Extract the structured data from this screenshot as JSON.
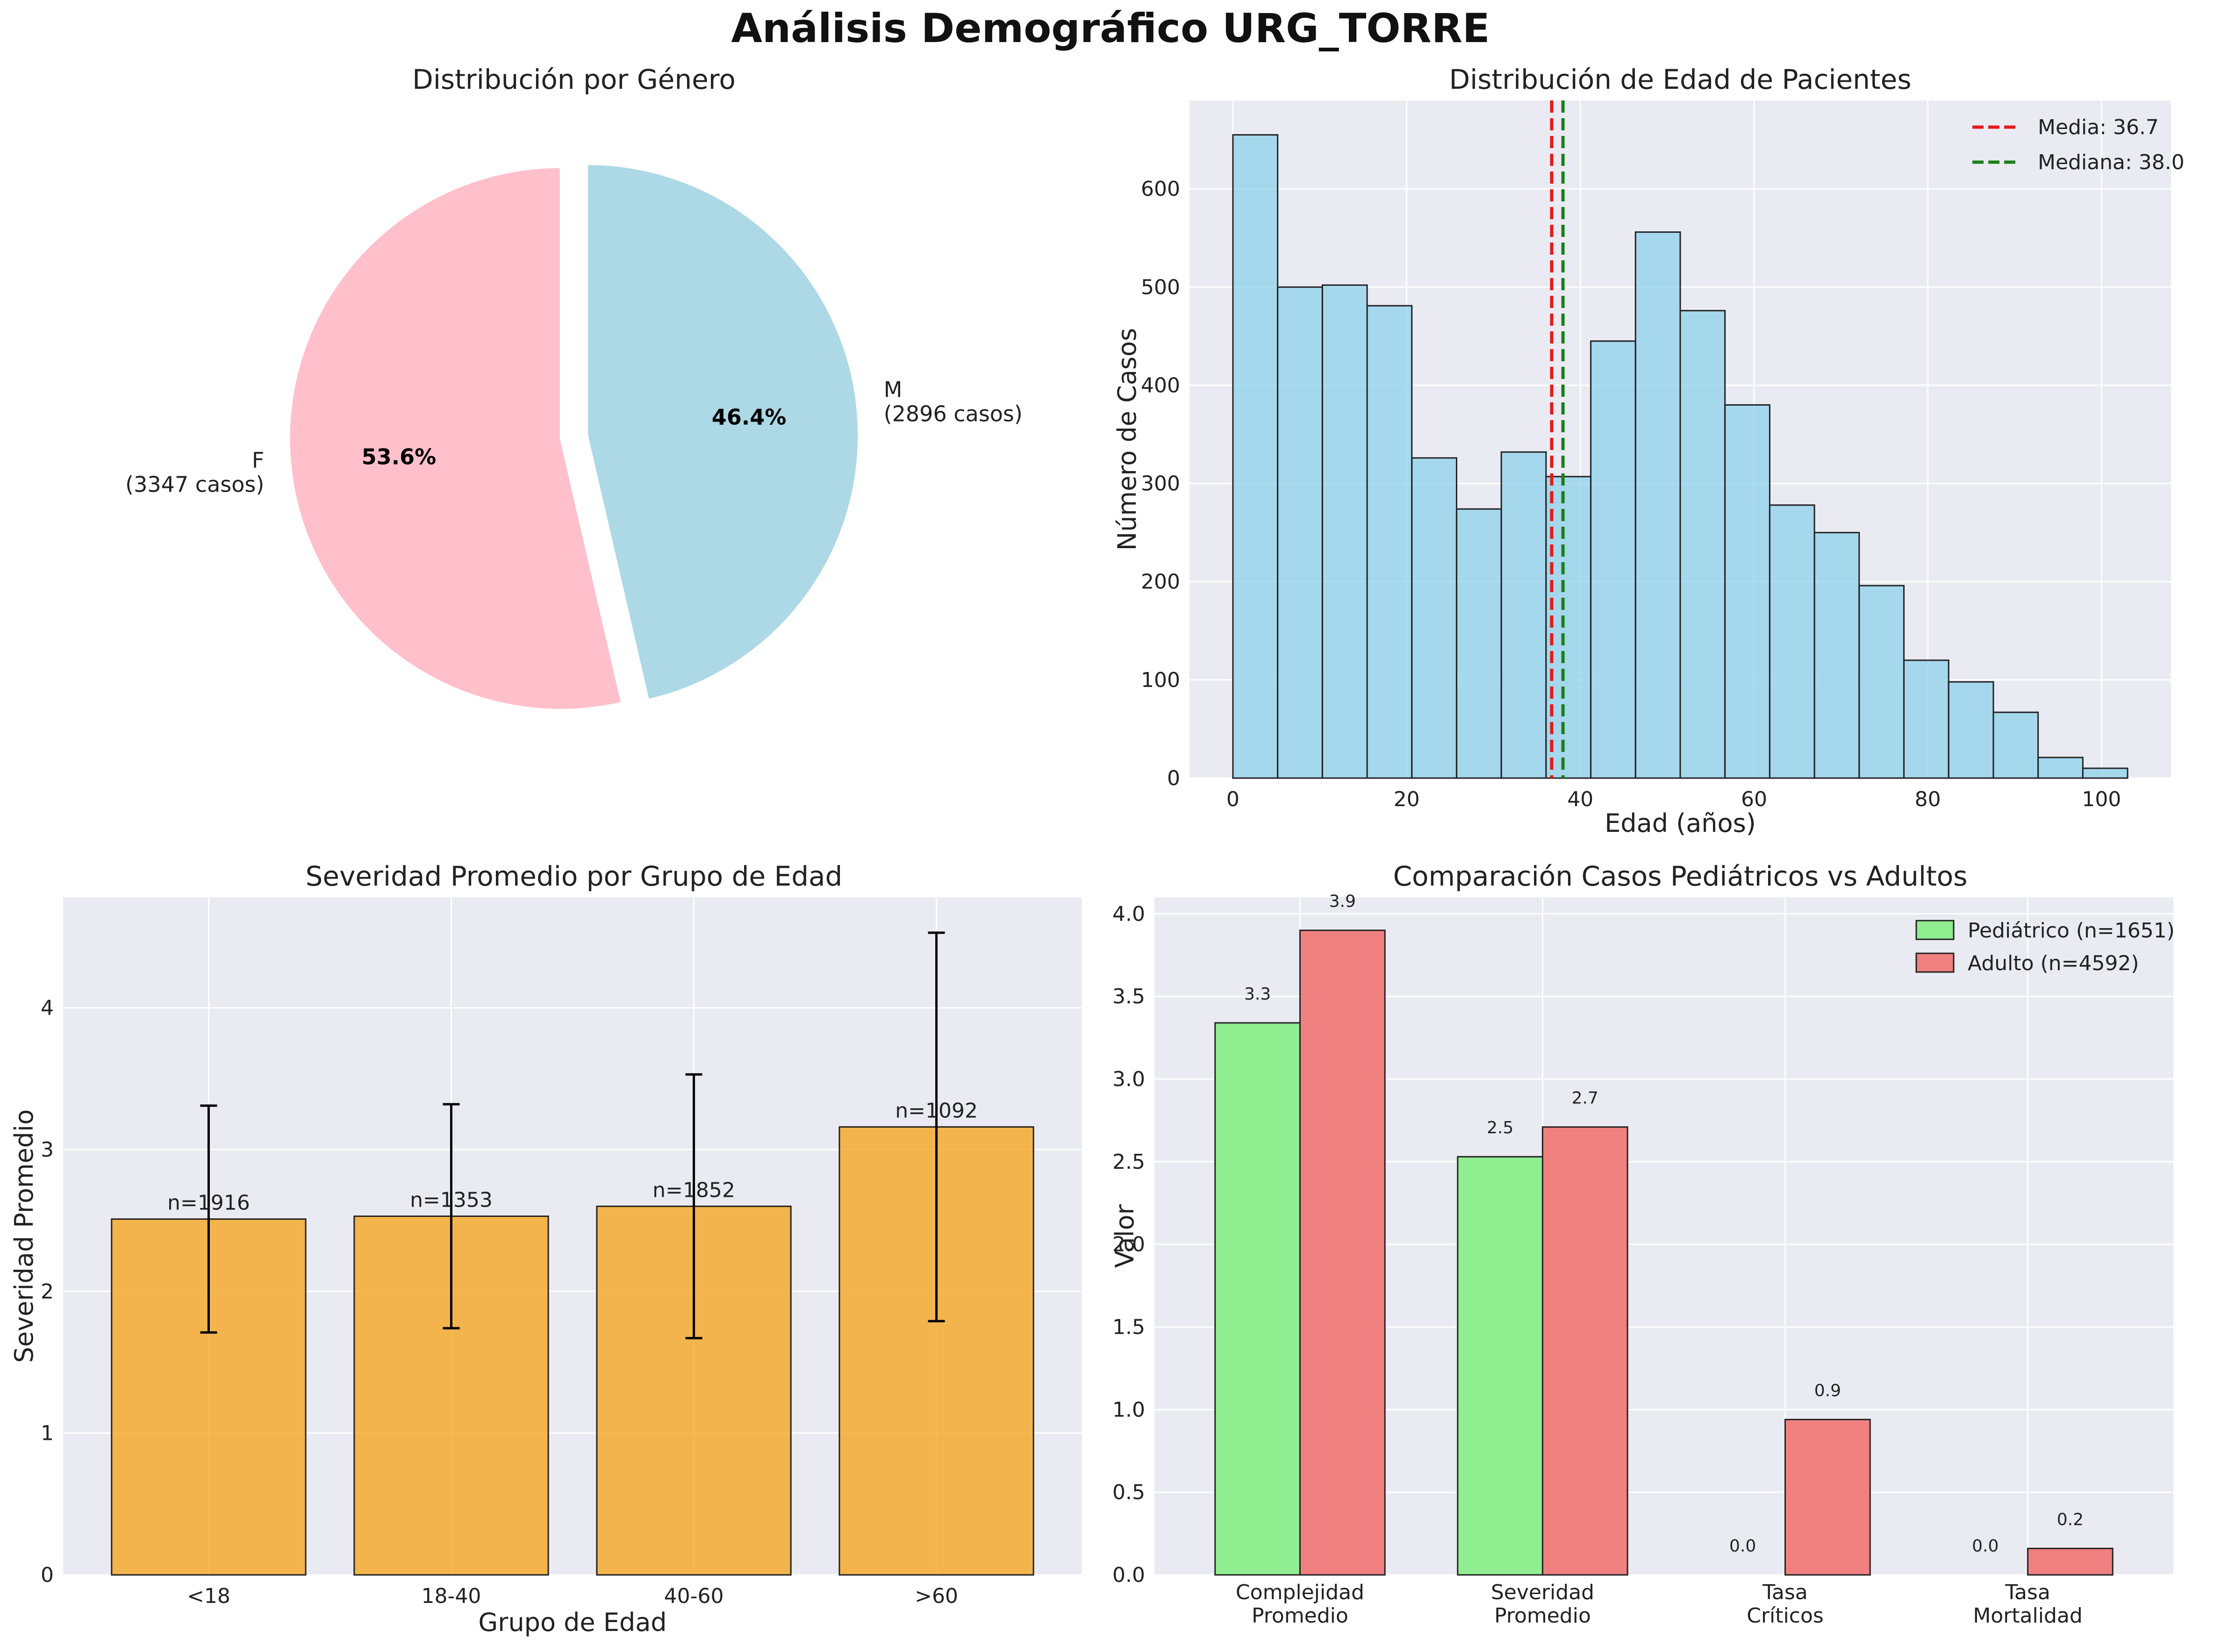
{
  "title": "Análisis Demográfico URG_TORRE",
  "colors": {
    "panel_bg": "#eaeaf2",
    "grid": "#ffffff",
    "female": "#ffc0cb",
    "male": "#add8e6",
    "hist": "#87ceeb",
    "severity": "#f5a623",
    "pediatric": "#90ee90",
    "adult": "#f08080",
    "mean_line": "#e41a1c",
    "median_line": "#1a7f1a"
  },
  "chart_data": [
    {
      "type": "pie",
      "title": "Distribución por Género",
      "slices": [
        {
          "name": "F",
          "count_label": "(3347 casos)",
          "value": 3347,
          "percent_label": "53.6%",
          "color": "#ffc0cb"
        },
        {
          "name": "M",
          "count_label": "(2896 casos)",
          "value": 2896,
          "percent_label": "46.4%",
          "color": "#add8e6"
        }
      ],
      "start_angle_deg": 90,
      "explode_fraction": 0.1
    },
    {
      "type": "bar",
      "subtype": "histogram",
      "title": "Distribución de Edad de Pacientes",
      "xlabel": "Edad (años)",
      "ylabel": "Número de Casos",
      "bin_start": 0,
      "bin_width": 5.15,
      "counts": [
        655,
        500,
        502,
        481,
        326,
        274,
        332,
        307,
        445,
        556,
        476,
        380,
        278,
        250,
        196,
        120,
        98,
        67,
        21,
        10
      ],
      "xlim": [
        -5,
        108
      ],
      "ylim": [
        0,
        690
      ],
      "xticks": [
        0,
        20,
        40,
        60,
        80,
        100
      ],
      "yticks": [
        0,
        100,
        200,
        300,
        400,
        500,
        600
      ],
      "mean": 36.7,
      "median": 38.0,
      "legend": [
        {
          "label": "Media: 36.7",
          "color": "#e41a1c"
        },
        {
          "label": "Mediana: 38.0",
          "color": "#1a7f1a"
        }
      ],
      "legend_position": "top-right",
      "grid": true
    },
    {
      "type": "bar",
      "title": "Severidad Promedio por Grupo de Edad",
      "xlabel": "Grupo de Edad",
      "ylabel": "Severidad Promedio",
      "categories": [
        "<18",
        "18-40",
        "40-60",
        ">60"
      ],
      "values": [
        2.51,
        2.53,
        2.6,
        3.16
      ],
      "errors": [
        0.8,
        0.79,
        0.93,
        1.37
      ],
      "n_labels": [
        "n=1916",
        "n=1353",
        "n=1852",
        "n=1092"
      ],
      "ylim": [
        0,
        4.78
      ],
      "yticks": [
        0,
        1,
        2,
        3,
        4
      ],
      "grid": true
    },
    {
      "type": "bar",
      "subtype": "grouped",
      "title": "Comparación Casos Pediátricos vs Adultos",
      "ylabel": "Valor",
      "categories": [
        [
          "Complejidad",
          "Promedio"
        ],
        [
          "Severidad",
          "Promedio"
        ],
        [
          "Tasa",
          "Críticos"
        ],
        [
          "Tasa",
          "Mortalidad"
        ]
      ],
      "series": [
        {
          "name": "Pediátrico (n=1651)",
          "values": [
            3.34,
            2.53,
            0.0,
            0.0
          ],
          "labels": [
            "3.3",
            "2.5",
            "0.0",
            "0.0"
          ],
          "color": "#90ee90"
        },
        {
          "name": "Adulto (n=4592)",
          "values": [
            3.9,
            2.71,
            0.94,
            0.16
          ],
          "labels": [
            "3.9",
            "2.7",
            "0.9",
            "0.2"
          ],
          "color": "#f08080"
        }
      ],
      "ylim": [
        0,
        4.1
      ],
      "yticks": [
        "0.0",
        "0.5",
        "1.0",
        "1.5",
        "2.0",
        "2.5",
        "3.0",
        "3.5",
        "4.0"
      ],
      "legend_position": "top-right",
      "grid": true
    }
  ]
}
